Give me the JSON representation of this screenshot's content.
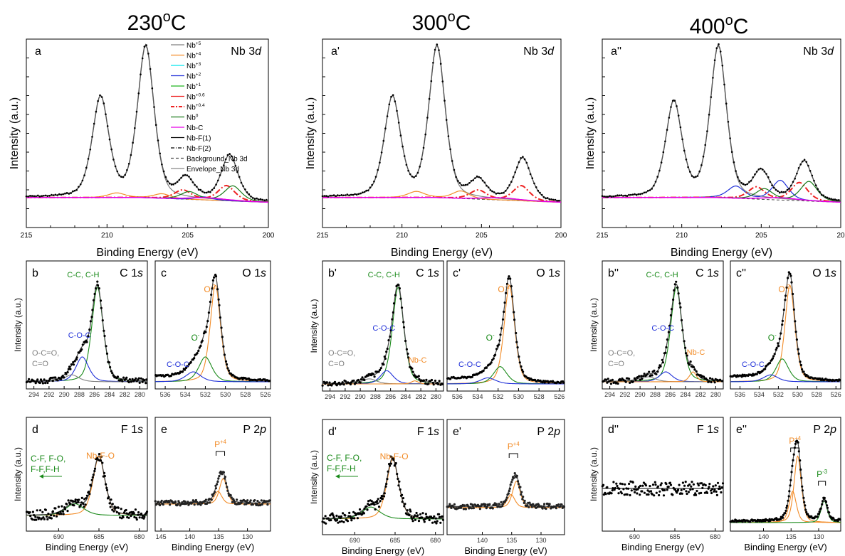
{
  "colors": {
    "nb5": "#808080",
    "nb4": "#f28c28",
    "nb3": "#00e5ee",
    "nb2": "#1f2fd8",
    "nb1": "#22b322",
    "nb06": "#ee2222",
    "nb04": "#ee2222",
    "nb0": "#1a7a1a",
    "nbc": "#e600e6",
    "nbf": "#000000",
    "gray": "#808080",
    "green": "#1a8a1a",
    "blue": "#1f2fd8",
    "orange": "#f28c28",
    "dots": "#000000"
  },
  "temperatures": [
    "230",
    "300",
    "400"
  ],
  "temp_unit": "oC",
  "legend": [
    "Nb+5",
    "Nb+4",
    "Nb+3",
    "Nb+2",
    "Nb+1",
    "Nb+0.6",
    "Nb+0.4",
    "Nb0",
    "Nb-C",
    "Nb-F(1)",
    "Nb-F(2)",
    "Background_Nb 3d",
    "Envelope_Nb 3d"
  ],
  "legend_placement": "top-right of panel a",
  "nb_axis": {
    "xlabel": "Binding Energy (eV)",
    "ylabel": "Intensity (a.u.)",
    "ticks": [
      "215",
      "210",
      "205",
      "200"
    ],
    "ticks_last": [
      "215",
      "210",
      "205",
      "20"
    ]
  },
  "small_axis": {
    "xlabel": "Binding Energy (eV)",
    "ylabel": "Intensity (a.u.)"
  },
  "panels": {
    "a": {
      "label": "a",
      "title": "Nb 3d"
    },
    "a1": {
      "label": "a'",
      "title": "Nb 3d"
    },
    "a2": {
      "label": "a''",
      "title": "Nb 3d"
    },
    "b": {
      "label": "b",
      "title": "C 1s"
    },
    "b1": {
      "label": "b'",
      "title": "C 1s"
    },
    "b2": {
      "label": "b''",
      "title": "C 1s"
    },
    "c": {
      "label": "c",
      "title": "O 1s"
    },
    "c1": {
      "label": "c'",
      "title": "O 1s"
    },
    "c2": {
      "label": "c''",
      "title": "O 1s"
    },
    "d": {
      "label": "d",
      "title": "F 1s"
    },
    "d1": {
      "label": "d'",
      "title": "F 1s"
    },
    "d2": {
      "label": "d''",
      "title": "F 1s"
    },
    "e": {
      "label": "e",
      "title": "P 2p"
    },
    "e1": {
      "label": "e'",
      "title": "P 2p"
    },
    "e2": {
      "label": "e''",
      "title": "P 2p"
    }
  },
  "annotations": {
    "cc": "C-C, C-H",
    "coc": "C-O-C",
    "oco1": "O-C=O,",
    "oco2": "C=O",
    "nbc": "Nb-C",
    "o2": "O",
    "o2sup": "-2",
    "om": "O",
    "omsup": "-",
    "cf1": "C-F, F-O,",
    "cf2": "F-F,F-H",
    "nbfo": "Nb-F-O",
    "p4": "P",
    "p4sup": "+4",
    "p3": "P",
    "p3sup": "-3"
  },
  "chart_data": [
    {
      "type": "line",
      "title": "Nb 3d",
      "panel": "a",
      "temperature": "230oC",
      "xlabel": "Binding Energy (eV)",
      "ylabel": "Intensity (a.u.)",
      "xlim": [
        215,
        200
      ],
      "x_reversed": true,
      "series": [
        {
          "name": "Nb+5",
          "peaks": [
            {
              "center": 207.6,
              "height": 1.0
            },
            {
              "center": 210.4,
              "height": 0.66
            }
          ]
        },
        {
          "name": "Nb+4",
          "peaks": [
            {
              "center": 206.6,
              "height": 0.03
            },
            {
              "center": 209.4,
              "height": 0.03
            }
          ]
        },
        {
          "name": "Nb+2",
          "peaks": [
            {
              "center": 204.0,
              "height": 0.02
            }
          ]
        },
        {
          "name": "Nb+0.4",
          "peaks": [
            {
              "center": 202.6,
              "height": 0.1
            },
            {
              "center": 205.3,
              "height": 0.06
            }
          ]
        },
        {
          "name": "Nb0",
          "peaks": [
            {
              "center": 202.2,
              "height": 0.1
            },
            {
              "center": 204.9,
              "height": 0.05
            }
          ]
        },
        {
          "name": "Envelope_Nb 3d",
          "peaks": [
            {
              "center": 207.6,
              "height": 1.0
            },
            {
              "center": 210.4,
              "height": 0.66
            },
            {
              "center": 205.1,
              "height": 0.13
            },
            {
              "center": 202.4,
              "height": 0.3
            }
          ]
        }
      ]
    },
    {
      "type": "line",
      "title": "Nb 3d",
      "panel": "a'",
      "temperature": "300oC",
      "xlabel": "Binding Energy (eV)",
      "ylabel": "Intensity (a.u.)",
      "xlim": [
        215,
        200
      ],
      "x_reversed": true,
      "series": [
        {
          "name": "Nb+5",
          "peaks": [
            {
              "center": 207.8,
              "height": 1.0
            },
            {
              "center": 210.6,
              "height": 0.66
            }
          ]
        },
        {
          "name": "Nb+4",
          "peaks": [
            {
              "center": 206.3,
              "height": 0.05
            },
            {
              "center": 209.1,
              "height": 0.04
            }
          ]
        },
        {
          "name": "Nb+0.4",
          "peaks": [
            {
              "center": 202.5,
              "height": 0.1
            },
            {
              "center": 205.2,
              "height": 0.06
            }
          ]
        },
        {
          "name": "Envelope_Nb 3d",
          "peaks": [
            {
              "center": 207.8,
              "height": 1.0
            },
            {
              "center": 210.6,
              "height": 0.66
            },
            {
              "center": 205.2,
              "height": 0.12
            },
            {
              "center": 202.4,
              "height": 0.28
            }
          ]
        }
      ]
    },
    {
      "type": "line",
      "title": "Nb 3d",
      "panel": "a''",
      "temperature": "400oC",
      "xlabel": "Binding Energy (eV)",
      "ylabel": "Intensity (a.u.)",
      "xlim": [
        215,
        200
      ],
      "x_reversed": true,
      "series": [
        {
          "name": "Nb+5",
          "peaks": [
            {
              "center": 207.7,
              "height": 1.0
            },
            {
              "center": 210.5,
              "height": 0.63
            }
          ]
        },
        {
          "name": "Nb+2",
          "peaks": [
            {
              "center": 203.8,
              "height": 0.13
            },
            {
              "center": 206.6,
              "height": 0.08
            }
          ]
        },
        {
          "name": "Nb+0.4",
          "peaks": [
            {
              "center": 202.6,
              "height": 0.12
            },
            {
              "center": 205.3,
              "height": 0.08
            }
          ]
        },
        {
          "name": "Nb0",
          "peaks": [
            {
              "center": 202.0,
              "height": 0.13
            },
            {
              "center": 204.8,
              "height": 0.07
            }
          ]
        },
        {
          "name": "Envelope_Nb 3d",
          "peaks": [
            {
              "center": 207.7,
              "height": 1.0
            },
            {
              "center": 210.5,
              "height": 0.63
            },
            {
              "center": 205.0,
              "height": 0.18
            },
            {
              "center": 202.3,
              "height": 0.26
            }
          ]
        }
      ]
    },
    {
      "type": "line",
      "title": "C 1s",
      "panel": "b",
      "xlabel": "Binding Energy (eV)",
      "ylabel": "Intensity (a.u.)",
      "xlim": [
        295,
        279
      ],
      "ticks": [
        294,
        292,
        290,
        288,
        286,
        284,
        282,
        280
      ],
      "series": [
        {
          "name": "C-C, C-H",
          "center": 285.6,
          "height": 1.0
        },
        {
          "name": "C-O-C",
          "center": 287.6,
          "height": 0.25
        },
        {
          "name": "O-C=O, C=O",
          "center": 289.0,
          "height": 0.07
        }
      ]
    },
    {
      "type": "line",
      "title": "O 1s",
      "panel": "c",
      "xlabel": "Binding Energy (eV)",
      "ylabel": "Intensity (a.u.)",
      "xlim": [
        537,
        525.5
      ],
      "ticks": [
        536,
        534,
        532,
        530,
        528,
        526
      ],
      "series": [
        {
          "name": "O-2",
          "center": 531.0,
          "height": 1.0
        },
        {
          "name": "O-",
          "center": 532.0,
          "height": 0.25
        },
        {
          "name": "C-O-C",
          "center": 533.2,
          "height": 0.1
        }
      ]
    },
    {
      "type": "line",
      "title": "C 1s",
      "panel": "b'",
      "xlabel": "Binding Energy (eV)",
      "ylabel": "Intensity (a.u.)",
      "xlim": [
        295,
        279
      ],
      "ticks": [
        294,
        292,
        290,
        288,
        286,
        284,
        282,
        280
      ],
      "series": [
        {
          "name": "C-C, C-H",
          "center": 285.0,
          "height": 1.0
        },
        {
          "name": "C-O-C",
          "center": 286.5,
          "height": 0.13
        },
        {
          "name": "O-C=O, C=O",
          "center": 288.8,
          "height": 0.05
        },
        {
          "name": "Nb-C",
          "center": 282.8,
          "height": 0.03
        }
      ]
    },
    {
      "type": "line",
      "title": "O 1s",
      "panel": "c'",
      "xlabel": "Binding Energy (eV)",
      "ylabel": "Intensity (a.u.)",
      "xlim": [
        537,
        525.5
      ],
      "ticks": [
        536,
        534,
        532,
        530,
        528,
        526
      ],
      "series": [
        {
          "name": "O-2",
          "center": 530.9,
          "height": 1.0
        },
        {
          "name": "O-",
          "center": 531.8,
          "height": 0.17
        },
        {
          "name": "C-O-C",
          "center": 533.0,
          "height": 0.06
        }
      ]
    },
    {
      "type": "line",
      "title": "C 1s",
      "panel": "b''",
      "xlabel": "Binding Energy (eV)",
      "ylabel": "Intensity (a.u.)",
      "xlim": [
        295,
        279
      ],
      "ticks": [
        294,
        292,
        290,
        288,
        286,
        284,
        282,
        280
      ],
      "series": [
        {
          "name": "C-C, C-H",
          "center": 285.2,
          "height": 1.0
        },
        {
          "name": "C-O-C",
          "center": 286.6,
          "height": 0.1
        },
        {
          "name": "O-C=O, C=O",
          "center": 288.9,
          "height": 0.05
        },
        {
          "name": "Nb-C",
          "center": 283.0,
          "height": 0.1
        }
      ]
    },
    {
      "type": "line",
      "title": "O 1s",
      "panel": "c''",
      "xlabel": "Binding Energy (eV)",
      "ylabel": "Intensity (a.u.)",
      "xlim": [
        537,
        525.5
      ],
      "ticks": [
        536,
        534,
        532,
        530,
        528,
        526
      ],
      "series": [
        {
          "name": "O-2",
          "center": 530.8,
          "height": 1.0
        },
        {
          "name": "O-",
          "center": 531.6,
          "height": 0.23
        },
        {
          "name": "C-O-C",
          "center": 532.8,
          "height": 0.07
        }
      ]
    },
    {
      "type": "scatter",
      "title": "F 1s",
      "panel": "d",
      "xlabel": "Binding Energy (eV)",
      "ylabel": "Intensity (a.u.)",
      "xlim": [
        694,
        679
      ],
      "ticks": [
        690,
        685,
        680
      ],
      "series": [
        {
          "name": "Nb-F-O",
          "center": 685.0,
          "height": 1.0
        },
        {
          "name": "C-F, F-O, F-F,F-H",
          "center": 688.0,
          "height": 0.2
        }
      ]
    },
    {
      "type": "scatter",
      "title": "P 2p",
      "panel": "e",
      "xlabel": "Binding Energy (eV)",
      "ylabel": "Intensity (a.u.)",
      "xlim": [
        146,
        126
      ],
      "ticks": [
        145,
        140,
        135,
        130
      ],
      "series": [
        {
          "name": "P+4",
          "center": 134.2,
          "height": 1.0
        }
      ]
    },
    {
      "type": "scatter",
      "title": "F 1s",
      "panel": "d'",
      "xlabel": "Binding Energy (eV)",
      "ylabel": "Intensity (a.u.)",
      "xlim": [
        694,
        679
      ],
      "ticks": [
        690,
        685,
        680
      ],
      "series": [
        {
          "name": "Nb-F-O",
          "center": 685.3,
          "height": 1.0
        },
        {
          "name": "C-F, F-O, F-F,F-H",
          "center": 688.0,
          "height": 0.2
        }
      ]
    },
    {
      "type": "scatter",
      "title": "P 2p",
      "panel": "e'",
      "xlabel": "Binding Energy (eV)",
      "ylabel": "Intensity (a.u.)",
      "xlim": [
        146,
        126
      ],
      "ticks": [
        140,
        135,
        130
      ],
      "series": [
        {
          "name": "P+4",
          "center": 134.2,
          "height": 1.0
        }
      ]
    },
    {
      "type": "scatter",
      "title": "F 1s",
      "panel": "d''",
      "xlabel": "Binding Energy (eV)",
      "ylabel": "Intensity (a.u.)",
      "xlim": [
        694,
        679
      ],
      "ticks": [
        690,
        685,
        680
      ],
      "series": []
    },
    {
      "type": "scatter",
      "title": "P 2p",
      "panel": "e''",
      "xlabel": "Binding Energy (eV)",
      "ylabel": "Intensity (a.u.)",
      "xlim": [
        146,
        126
      ],
      "ticks": [
        140,
        135,
        130
      ],
      "series": [
        {
          "name": "P+4",
          "center": 133.8,
          "height": 1.0
        },
        {
          "name": "P-3",
          "center": 129.0,
          "height": 0.3
        }
      ]
    }
  ]
}
